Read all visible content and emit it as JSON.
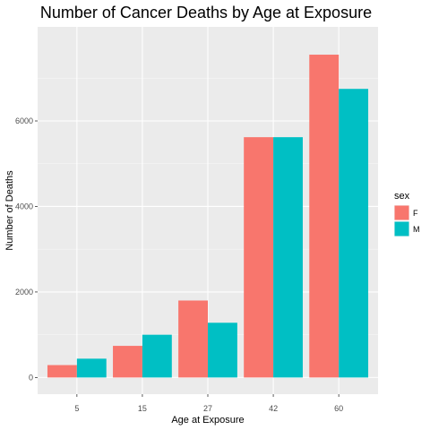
{
  "chart_data": {
    "type": "bar",
    "title": "Number of Cancer Deaths by Age at Exposure",
    "xlabel": "Age at Exposure",
    "ylabel": "Number of Deaths",
    "categories": [
      "5",
      "15",
      "27",
      "42",
      "60"
    ],
    "series": [
      {
        "name": "F",
        "color": "#F8766D",
        "values": [
          290,
          740,
          1800,
          5620,
          7550
        ]
      },
      {
        "name": "M",
        "color": "#00BFC4",
        "values": [
          440,
          1000,
          1280,
          5620,
          6750
        ]
      }
    ],
    "yticks": [
      0,
      2000,
      4000,
      6000
    ],
    "ylim": [
      -390,
      8200
    ],
    "grid": true,
    "legend": {
      "title": "sex",
      "placement": "right"
    }
  }
}
